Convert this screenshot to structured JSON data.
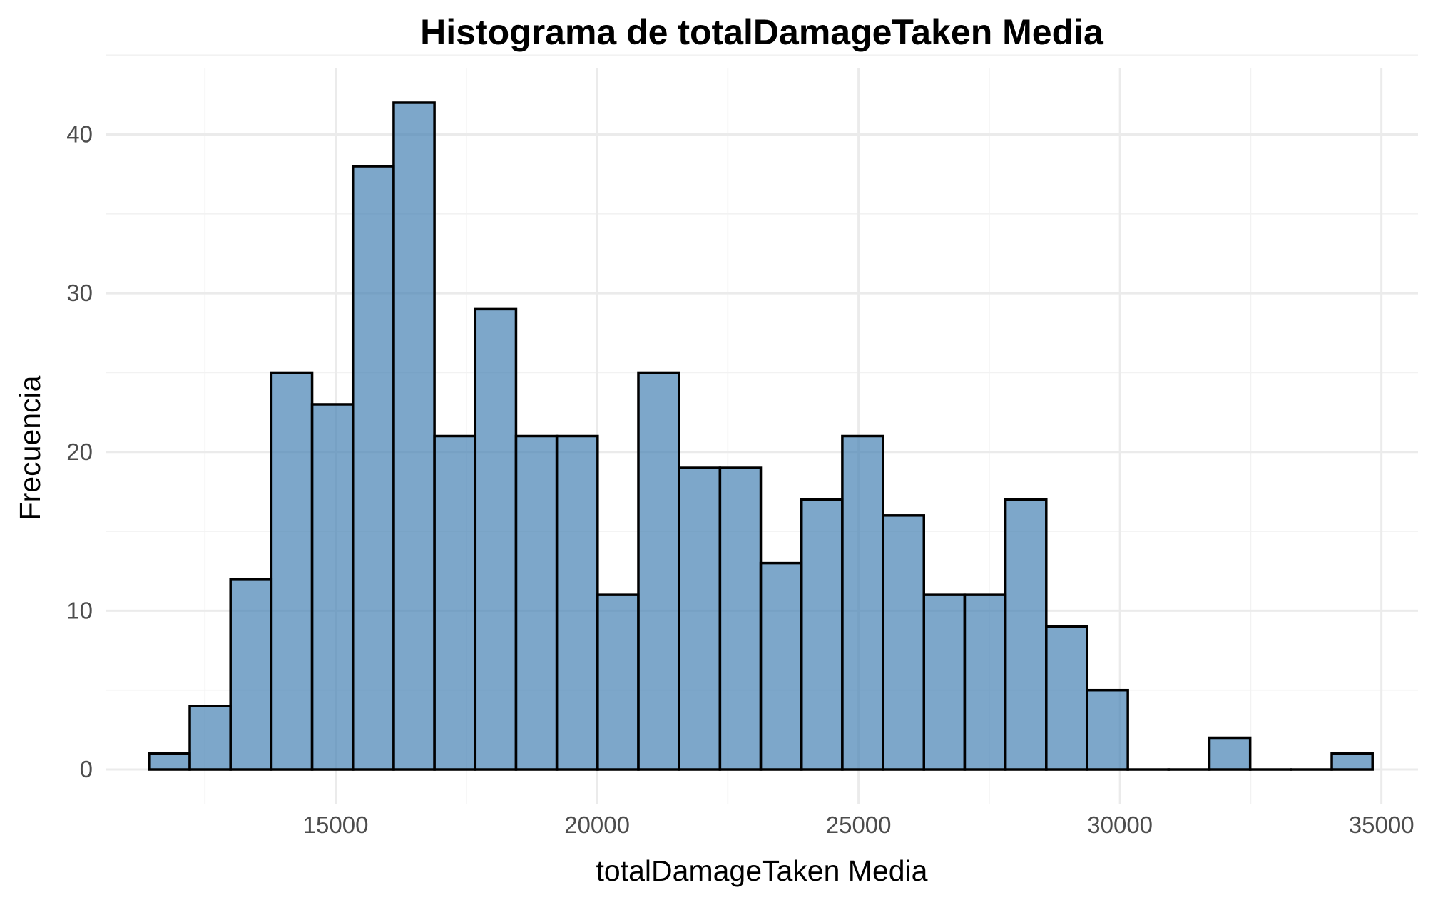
{
  "chart_data": {
    "type": "bar",
    "title": "Histograma de totalDamageTaken Media",
    "xlabel": "totalDamageTaken Media",
    "ylabel": "Frecuencia",
    "bin_width": 780,
    "bin_starts": [
      11430,
      12210,
      12990,
      13770,
      14550,
      15330,
      16110,
      16890,
      17670,
      18450,
      19230,
      20010,
      20790,
      21570,
      22350,
      23130,
      23910,
      24690,
      25470,
      26250,
      27030,
      27810,
      28590,
      29370,
      30150,
      30930,
      31710,
      32490,
      33270,
      34050
    ],
    "values": [
      1,
      4,
      12,
      25,
      23,
      38,
      42,
      21,
      29,
      21,
      21,
      11,
      25,
      19,
      19,
      13,
      17,
      21,
      16,
      11,
      11,
      17,
      9,
      5,
      0,
      0,
      2,
      0,
      0,
      1
    ],
    "xlim": [
      10600,
      35700
    ],
    "ylim": [
      -2.2,
      44.2
    ],
    "x_ticks": [
      15000,
      20000,
      25000,
      30000,
      35000
    ],
    "x_tick_labels": [
      "15000",
      "20000",
      "25000",
      "30000",
      "35000"
    ],
    "y_ticks": [
      0,
      10,
      20,
      30,
      40
    ],
    "y_tick_labels": [
      "0",
      "10",
      "20",
      "30",
      "40"
    ],
    "grid": true,
    "legend": "none",
    "colors": {
      "bar_fill": "#4682b4",
      "bar_outline": "#000000"
    }
  }
}
